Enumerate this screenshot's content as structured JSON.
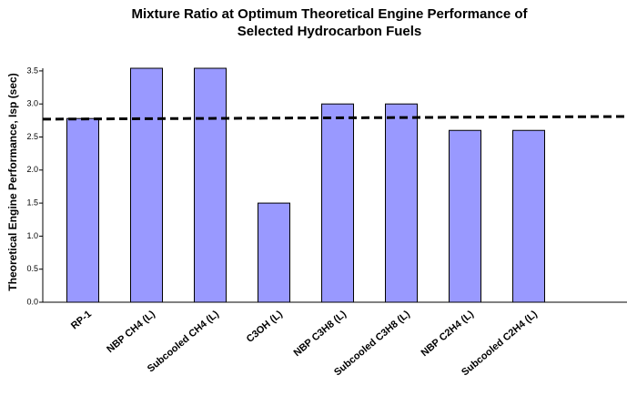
{
  "chart_data": {
    "type": "bar",
    "title": [
      "Mixture Ratio at Optimum Theoretical Engine Performance of",
      "Selected Hydrocarbon Fuels"
    ],
    "y_label": "Theoretical Engine Performance, Isp (sec)",
    "categories": [
      "RP-1",
      "NBP CH4 (L)",
      "Subcooled CH4 (L)",
      "C3OH (L)",
      "NBP C3H8 (L)",
      "Subcooled C3H8 (L)",
      "NBP C2H4 (L)",
      "Subcooled C2H4 (L)"
    ],
    "values": [
      2.78,
      3.54,
      3.54,
      1.5,
      3.0,
      3.0,
      2.6,
      2.6
    ],
    "color": "#9999ff",
    "reference_line": [
      2.77,
      2.81
    ],
    "ylim": [
      0,
      3.54
    ],
    "yticks": [
      {
        "value": 0,
        "label": "0.0"
      },
      {
        "value": 0.5,
        "label": "0.5"
      },
      {
        "value": 1,
        "label": "1.0"
      },
      {
        "value": 1.5,
        "label": "1.5"
      },
      {
        "value": 2,
        "label": "2.0"
      },
      {
        "value": 2.5,
        "label": "2.5"
      },
      {
        "value": 3,
        "label": "3.0"
      },
      {
        "value": 3.5,
        "label": "3.5"
      }
    ]
  }
}
